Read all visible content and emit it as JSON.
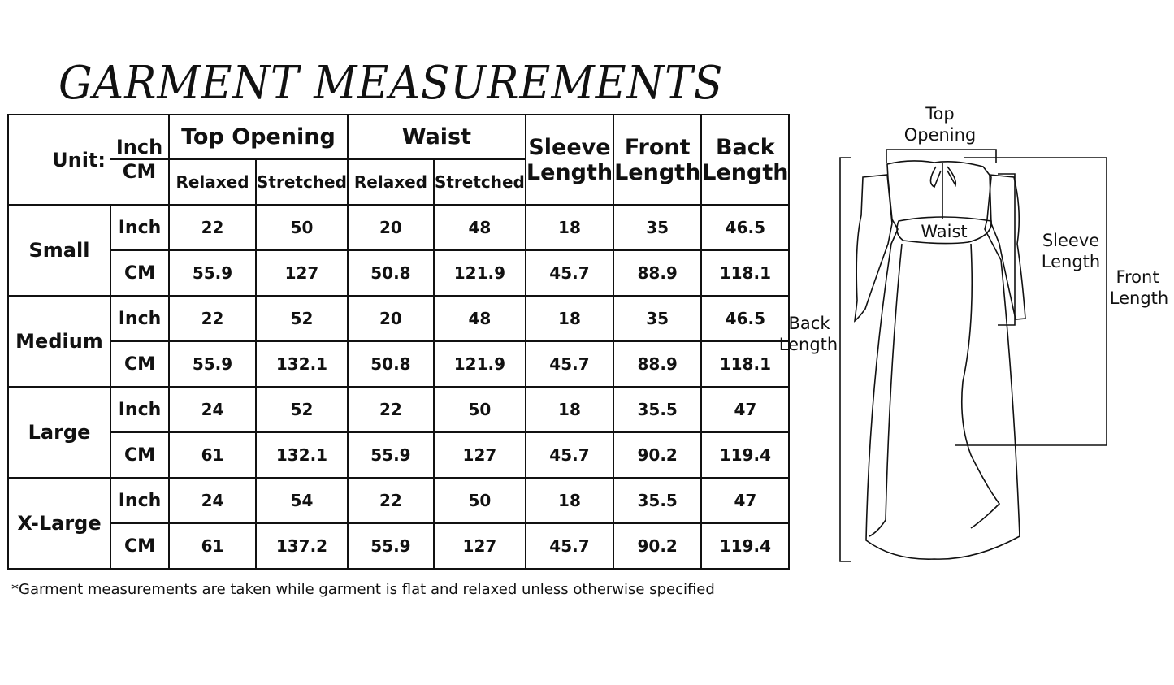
{
  "title": "GARMENT MEASUREMENTS",
  "header": {
    "unit_label": "Unit:",
    "unit_inch": "Inch",
    "unit_cm": "CM",
    "top_opening": "Top Opening",
    "waist": "Waist",
    "sleeve_length": "Sleeve Length",
    "front_length": "Front Length",
    "back_length": "Back Length",
    "relaxed": "Relaxed",
    "stretched": "Stretched"
  },
  "sizes": [
    {
      "name": "Small",
      "rows": [
        [
          "Inch",
          "22",
          "50",
          "20",
          "48",
          "18",
          "35",
          "46.5"
        ],
        [
          "CM",
          "55.9",
          "127",
          "50.8",
          "121.9",
          "45.7",
          "88.9",
          "118.1"
        ]
      ]
    },
    {
      "name": "Medium",
      "rows": [
        [
          "Inch",
          "22",
          "52",
          "20",
          "48",
          "18",
          "35",
          "46.5"
        ],
        [
          "CM",
          "55.9",
          "132.1",
          "50.8",
          "121.9",
          "45.7",
          "88.9",
          "118.1"
        ]
      ]
    },
    {
      "name": "Large",
      "rows": [
        [
          "Inch",
          "24",
          "52",
          "22",
          "50",
          "18",
          "35.5",
          "47"
        ],
        [
          "CM",
          "61",
          "132.1",
          "55.9",
          "127",
          "45.7",
          "90.2",
          "119.4"
        ]
      ]
    },
    {
      "name": "X-Large",
      "rows": [
        [
          "Inch",
          "24",
          "54",
          "22",
          "50",
          "18",
          "35.5",
          "47"
        ],
        [
          "CM",
          "61",
          "137.2",
          "55.9",
          "127",
          "45.7",
          "90.2",
          "119.4"
        ]
      ]
    }
  ],
  "note": "*Garment measurements are taken while garment is flat and relaxed unless otherwise specified",
  "diagram": {
    "top_opening": [
      "Top",
      "Opening"
    ],
    "waist": "Waist",
    "sleeve_length": [
      "Sleeve",
      "Length"
    ],
    "front_length": [
      "Front",
      "Length"
    ],
    "back_length": [
      "Back",
      "Length"
    ]
  }
}
